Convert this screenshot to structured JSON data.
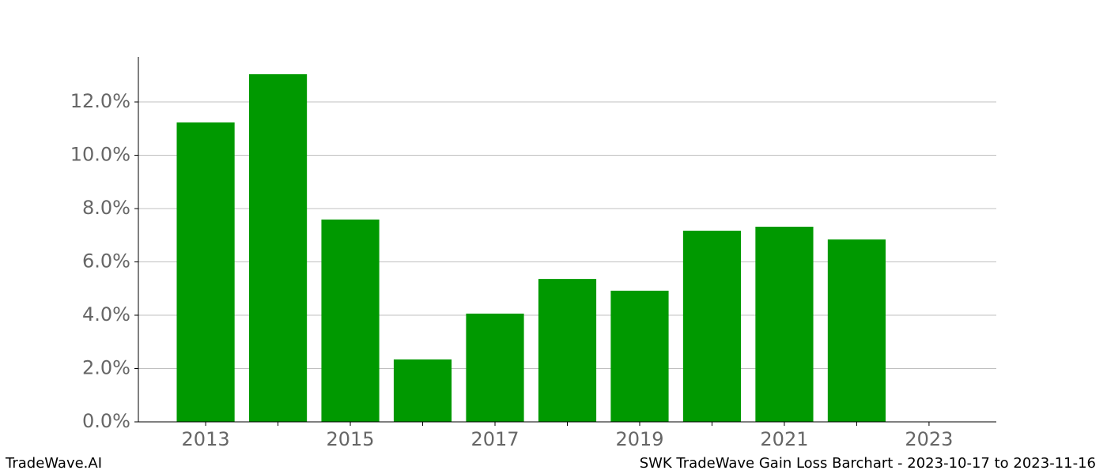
{
  "chart_data": {
    "type": "bar",
    "title": "SWK TradeWave Gain Loss Barchart - 2023-10-17 to 2023-11-16",
    "watermark": "TradeWave.AI",
    "x": [
      2013,
      2014,
      2015,
      2016,
      2017,
      2018,
      2019,
      2020,
      2021,
      2022
    ],
    "values": [
      11.23,
      13.04,
      7.59,
      2.34,
      4.06,
      5.36,
      4.92,
      7.17,
      7.32,
      6.84
    ],
    "color": "#009900",
    "xlim": [
      2012.07,
      2023.93
    ],
    "xticks": [
      2013,
      2015,
      2017,
      2019,
      2021,
      2023
    ],
    "xminorticks": [
      2014,
      2016,
      2018,
      2020,
      2022
    ],
    "ylim": [
      0,
      13.69
    ],
    "yticks": [
      {
        "value": 0,
        "label": "0.0%"
      },
      {
        "value": 2,
        "label": "2.0%"
      },
      {
        "value": 4,
        "label": "4.0%"
      },
      {
        "value": 6,
        "label": "6.0%"
      },
      {
        "value": 8,
        "label": "8.0%"
      },
      {
        "value": 10,
        "label": "10.0%"
      },
      {
        "value": 12,
        "label": "12.0%"
      }
    ],
    "grid": true
  }
}
